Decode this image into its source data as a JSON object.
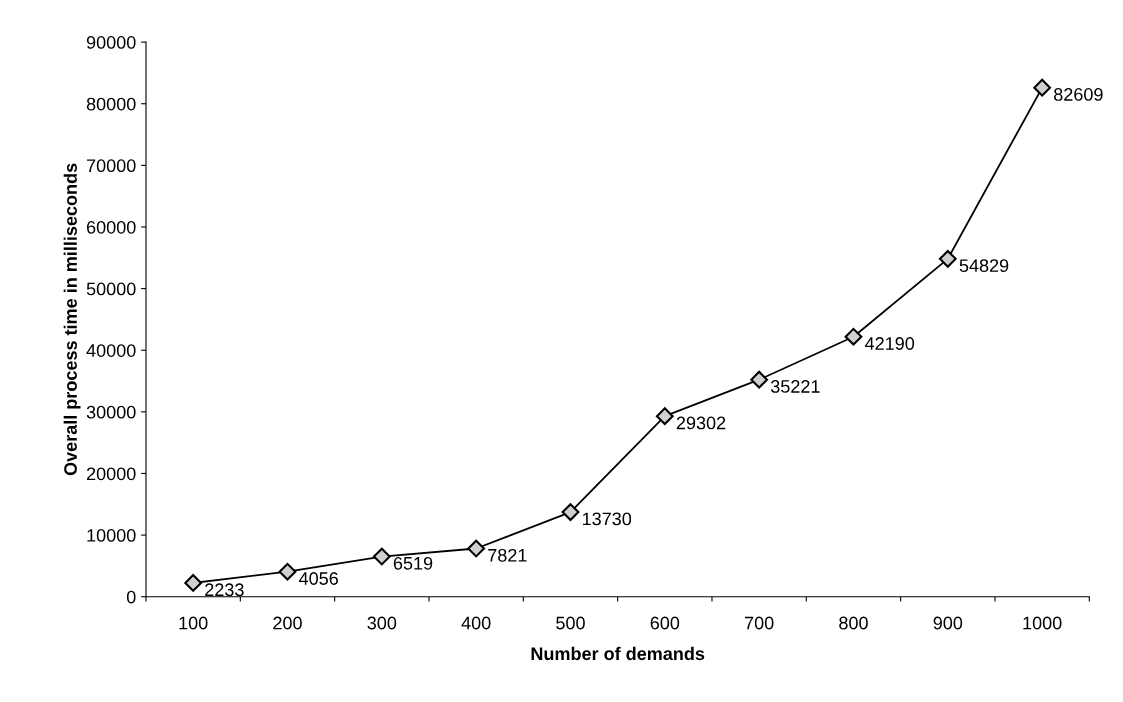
{
  "chart_data": {
    "type": "line",
    "xlabel": "Number of demands",
    "ylabel": "Overall process time in milliseconds",
    "categories": [
      "100",
      "200",
      "300",
      "400",
      "500",
      "600",
      "700",
      "800",
      "900",
      "1000"
    ],
    "series": [
      {
        "color": "#000000",
        "values": [
          2233,
          4056,
          6519,
          7821,
          13730,
          29302,
          35221,
          42190,
          54829,
          82609
        ]
      }
    ],
    "ylim": [
      0,
      90000
    ],
    "yticks": [
      0,
      10000,
      20000,
      30000,
      40000,
      50000,
      60000,
      70000,
      80000,
      90000
    ],
    "marker": "diamond",
    "line_style": "solid",
    "data_labels": true,
    "grid": false,
    "legend": false
  }
}
